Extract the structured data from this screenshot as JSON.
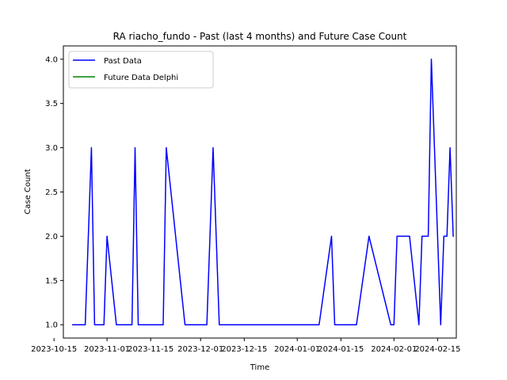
{
  "chart_data": {
    "type": "line",
    "title": "RA riacho_fundo - Past (last 4 months) and Future Case Count",
    "xlabel": "Time",
    "ylabel": "Case Count",
    "xlim": [
      "2023-10-18",
      "2024-02-21"
    ],
    "ylim": [
      0.85,
      4.15
    ],
    "x_ticks": [
      "2023-10-15",
      "2023-11-01",
      "2023-11-15",
      "2023-12-01",
      "2023-12-15",
      "2024-01-01",
      "2024-01-15",
      "2024-02-01",
      "2024-02-15"
    ],
    "y_ticks": [
      "1.0",
      "1.5",
      "2.0",
      "2.5",
      "3.0",
      "3.5",
      "4.0"
    ],
    "legend_position": "upper left",
    "grid": false,
    "series": [
      {
        "name": "Past Data",
        "color": "#0000ff",
        "x": [
          "2023-10-21",
          "2023-10-25",
          "2023-10-27",
          "2023-10-28",
          "2023-10-31",
          "2023-11-01",
          "2023-11-04",
          "2023-11-09",
          "2023-11-10",
          "2023-11-11",
          "2023-11-19",
          "2023-11-20",
          "2023-11-26",
          "2023-12-03",
          "2023-12-05",
          "2023-12-07",
          "2024-01-08",
          "2024-01-12",
          "2024-01-13",
          "2024-01-20",
          "2024-01-24",
          "2024-01-31",
          "2024-02-01",
          "2024-02-02",
          "2024-02-06",
          "2024-02-09",
          "2024-02-10",
          "2024-02-12",
          "2024-02-13",
          "2024-02-16",
          "2024-02-17",
          "2024-02-18",
          "2024-02-19",
          "2024-02-20"
        ],
        "y": [
          1,
          1,
          3,
          1,
          1,
          2,
          1,
          1,
          3,
          1,
          1,
          3,
          1,
          1,
          3,
          1,
          1,
          2,
          1,
          1,
          2,
          1,
          1,
          2,
          2,
          1,
          2,
          2,
          4,
          1,
          2,
          2,
          3,
          2
        ]
      },
      {
        "name": "Future Data Delphi",
        "color": "#008000",
        "x": [],
        "y": []
      }
    ]
  }
}
